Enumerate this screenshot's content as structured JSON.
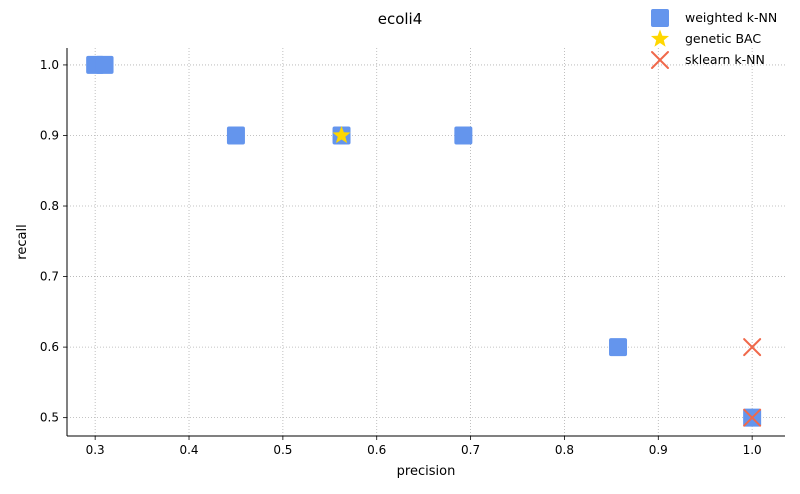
{
  "chart_data": {
    "type": "scatter",
    "title": "ecoli4",
    "xlabel": "precision",
    "ylabel": "recall",
    "xlim": [
      0.27,
      1.035
    ],
    "ylim": [
      0.474,
      1.024
    ],
    "xticks": [
      "0.3",
      "0.4",
      "0.5",
      "0.6",
      "0.7",
      "0.8",
      "0.9",
      "1.0"
    ],
    "yticks": [
      "0.5",
      "0.6",
      "0.7",
      "0.8",
      "0.9",
      "1.0"
    ],
    "grid": true,
    "legend_position": "top-right",
    "series": [
      {
        "name": "weighted k-NN",
        "marker": "square",
        "color": "#6495ed",
        "points": [
          {
            "x": 0.3,
            "y": 1.0
          },
          {
            "x": 0.31,
            "y": 1.0
          },
          {
            "x": 0.45,
            "y": 0.9
          },
          {
            "x": 0.5625,
            "y": 0.9
          },
          {
            "x": 0.6923,
            "y": 0.9
          },
          {
            "x": 0.8571,
            "y": 0.6
          },
          {
            "x": 1.0,
            "y": 0.5
          }
        ]
      },
      {
        "name": "genetic BAC",
        "marker": "star",
        "color": "#ffd700",
        "points": [
          {
            "x": 0.5625,
            "y": 0.9
          }
        ]
      },
      {
        "name": "sklearn k-NN",
        "marker": "x",
        "color": "#f0694b",
        "points": [
          {
            "x": 1.0,
            "y": 0.6
          },
          {
            "x": 1.0,
            "y": 0.5
          }
        ]
      }
    ]
  }
}
